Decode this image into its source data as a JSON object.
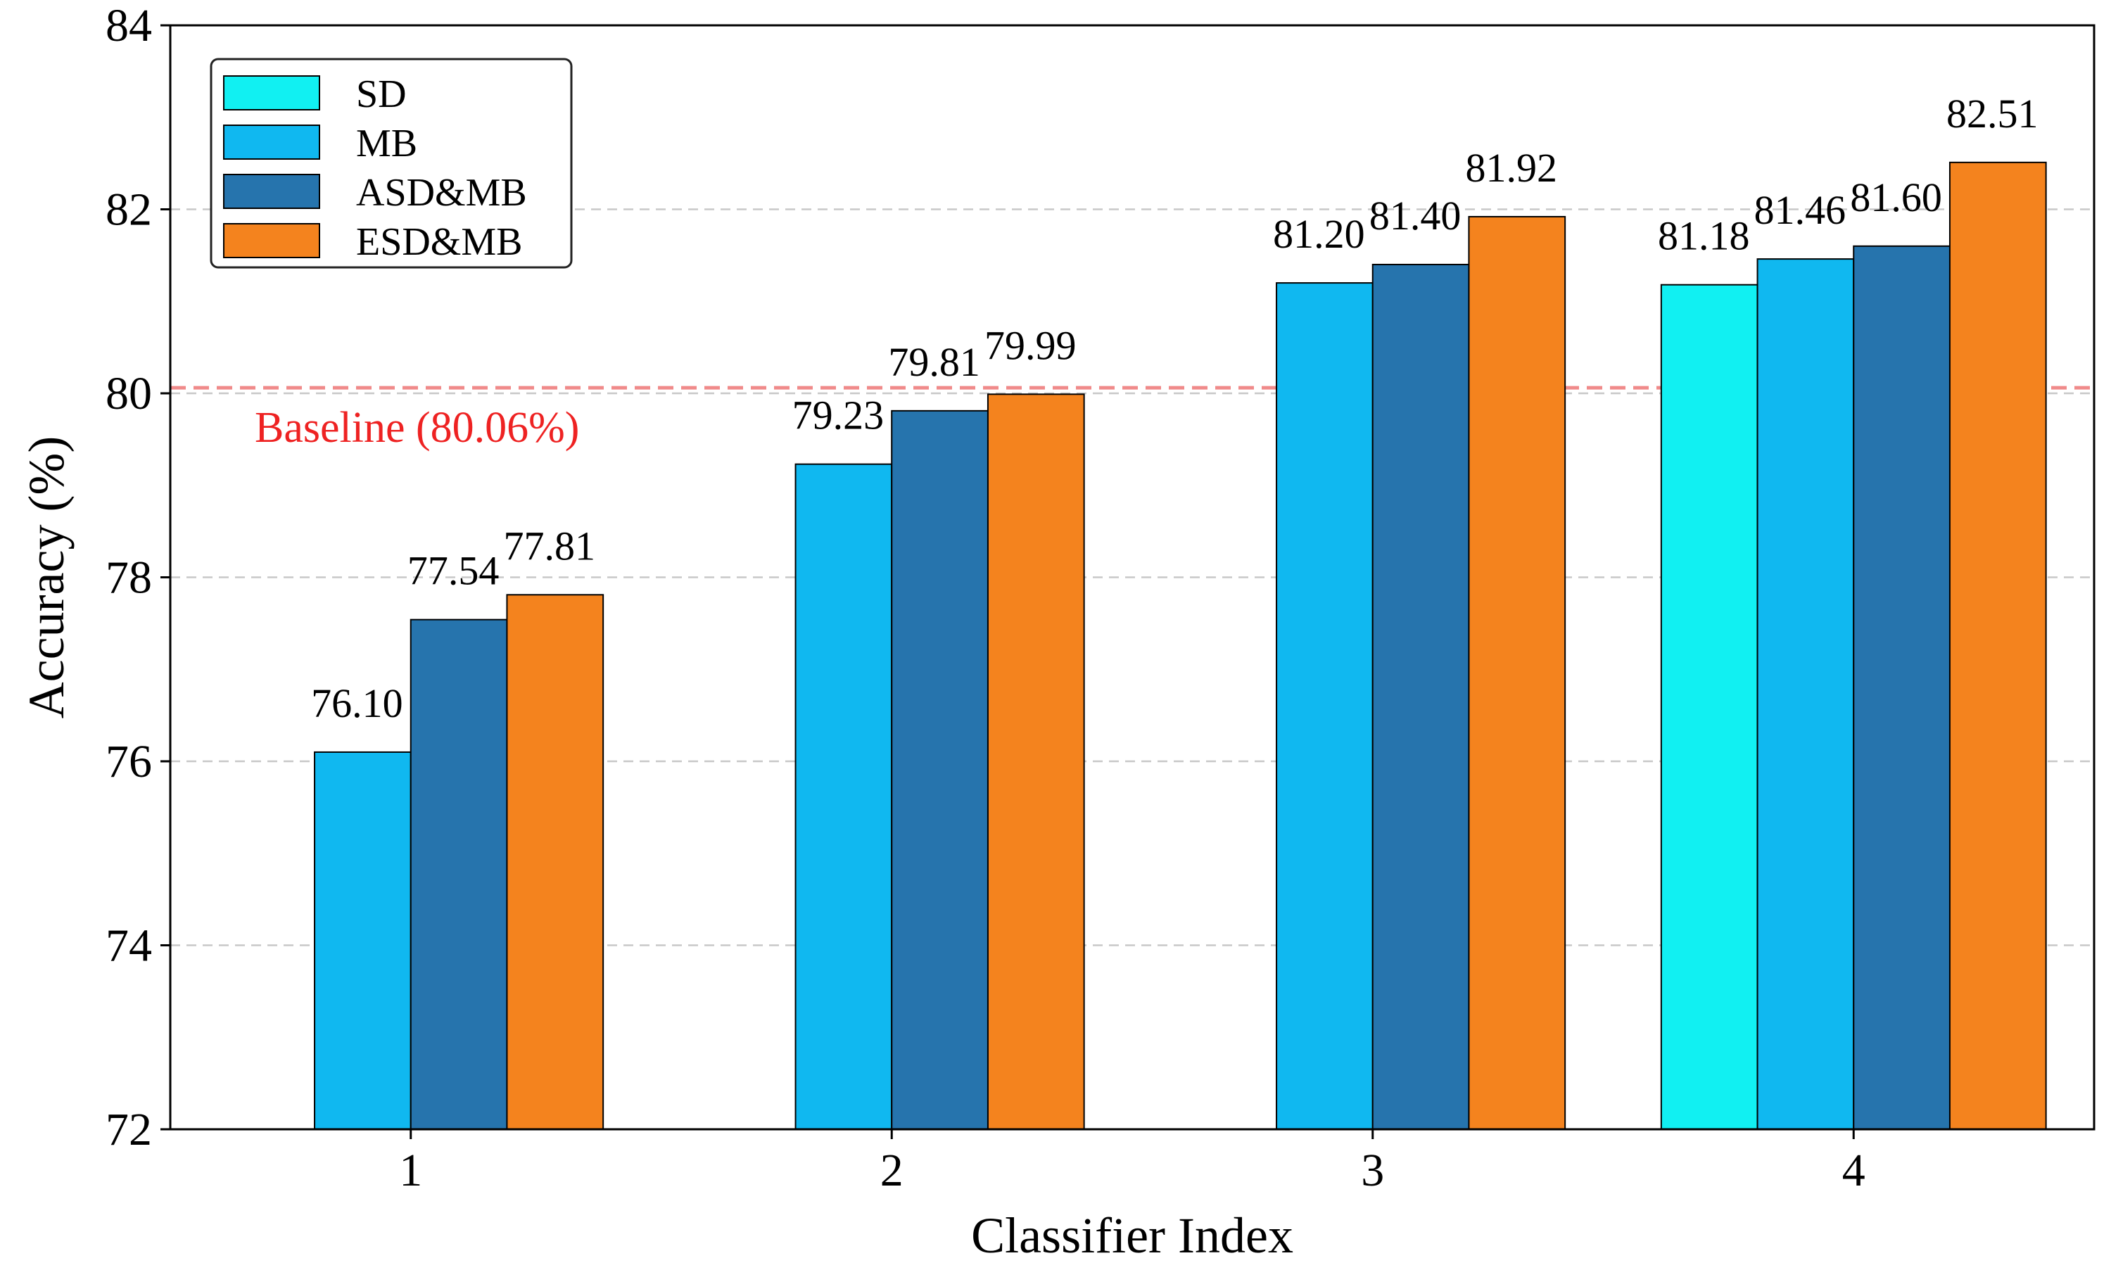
{
  "chart_data": {
    "type": "bar",
    "xlabel": "Classifier Index",
    "ylabel": "Accuracy (%)",
    "ylim": [
      72,
      84
    ],
    "yticks": [
      72,
      74,
      76,
      78,
      80,
      82,
      84
    ],
    "grid": "horizontal-dashed",
    "legend_position": "top-left",
    "categories": [
      "1",
      "2",
      "3",
      "4"
    ],
    "series": [
      {
        "name": "SD",
        "color": "#11F0F2",
        "values": [
          null,
          null,
          null,
          81.18
        ],
        "labels": [
          "",
          "",
          "",
          "81.18"
        ]
      },
      {
        "name": "MB",
        "color": "#10B8F0",
        "values": [
          76.1,
          79.23,
          81.2,
          81.46
        ],
        "labels": [
          "76.10",
          "79.23",
          "81.20",
          "81.46"
        ]
      },
      {
        "name": "ASD&MB",
        "color": "#2674AD",
        "values": [
          77.54,
          79.81,
          81.4,
          81.6
        ],
        "labels": [
          "77.54",
          "79.81",
          "81.40",
          "81.60"
        ]
      },
      {
        "name": "ESD&MB",
        "color": "#F4831E",
        "values": [
          77.81,
          79.99,
          81.92,
          82.51
        ],
        "labels": [
          "77.81",
          "79.99",
          "81.92",
          "82.51"
        ]
      }
    ],
    "baseline": {
      "value": 80.06,
      "label": "Baseline (80.06%)",
      "color": "#EE2222"
    }
  }
}
